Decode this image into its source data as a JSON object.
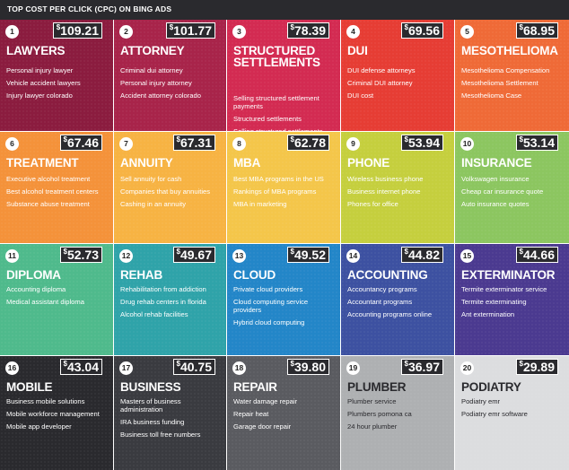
{
  "header": {
    "title": "TOP COST PER CLICK (CPC) ON BING ADS"
  },
  "tiles": [
    {
      "rank": "1",
      "price": "109.21",
      "name": "LAWYERS",
      "items": [
        "Personal injury lawyer",
        "Vehicle accident lawyers",
        "Injury lawyer colorado"
      ],
      "color": "#8b1c3f"
    },
    {
      "rank": "2",
      "price": "101.77",
      "name": "ATTORNEY",
      "items": [
        "Criminal dui attorney",
        "Personal injury attorney",
        "Accident attorney colorado"
      ],
      "color": "#a8244a"
    },
    {
      "rank": "3",
      "price": "78.39",
      "name": "STRUCTURED SETTLEMENTS",
      "items": [
        "Selling structured settlement payments",
        "Structured settlements",
        "Selling structured settlements"
      ],
      "color": "#d32b52"
    },
    {
      "rank": "4",
      "price": "69.56",
      "name": "DUI",
      "items": [
        "DUI defense attorneys",
        "Criminal DUI attorney",
        "DUI cost"
      ],
      "color": "#e63d34"
    },
    {
      "rank": "5",
      "price": "68.95",
      "name": "MESOTHELIOMA",
      "items": [
        "Mesothelioma Compensation",
        "Mesothelioma Settlement",
        "Mesothelioma Case"
      ],
      "color": "#ef6a37"
    },
    {
      "rank": "6",
      "price": "67.46",
      "name": "TREATMENT",
      "items": [
        "Executive alcohol treatment",
        "Best alcohol treatment centers",
        "Substance abuse treatment"
      ],
      "color": "#f4923a"
    },
    {
      "rank": "7",
      "price": "67.31",
      "name": "ANNUITY",
      "items": [
        "Sell annuity for cash",
        "Companies that buy annuities",
        "Cashing in an annuity"
      ],
      "color": "#f7b343"
    },
    {
      "rank": "8",
      "price": "62.78",
      "name": "MBA",
      "items": [
        "Best MBA programs in the US",
        "Rankings of MBA programs",
        "MBA in marketing"
      ],
      "color": "#f4c64a"
    },
    {
      "rank": "9",
      "price": "53.94",
      "name": "PHONE",
      "items": [
        "Wireless business phone",
        "Business internet phone",
        "Phones for office"
      ],
      "color": "#c5cf3e"
    },
    {
      "rank": "10",
      "price": "53.14",
      "name": "INSURANCE",
      "items": [
        "Volkswagen insurance",
        "Cheap car insurance quote",
        "Auto insurance quotes"
      ],
      "color": "#8cc660"
    },
    {
      "rank": "11",
      "price": "52.73",
      "name": "DIPLOMA",
      "items": [
        "Accounting diploma",
        "Medical assistant diploma"
      ],
      "color": "#4fba8c"
    },
    {
      "rank": "12",
      "price": "49.67",
      "name": "REHAB",
      "items": [
        "Rehabilitation from addiction",
        "Drug rehab centers in florida",
        "Alcohol rehab facilities"
      ],
      "color": "#2fa3a9"
    },
    {
      "rank": "13",
      "price": "49.52",
      "name": "CLOUD",
      "items": [
        "Private cloud providers",
        "Cloud computing service providers",
        "Hybrid cloud computing"
      ],
      "color": "#2386c8"
    },
    {
      "rank": "14",
      "price": "44.82",
      "name": "ACCOUNTING",
      "items": [
        "Accountancy programs",
        "Accountant programs",
        "Accounting programs online"
      ],
      "color": "#3d51a1"
    },
    {
      "rank": "15",
      "price": "44.66",
      "name": "EXTERMINATOR",
      "items": [
        "Termite exterminator service",
        "Termite exterminating",
        "Ant extermination"
      ],
      "color": "#4b3a90"
    },
    {
      "rank": "16",
      "price": "43.04",
      "name": "MOBILE",
      "items": [
        "Business mobile solutions",
        "Mobile workforce management",
        "Mobile app developer"
      ],
      "color": "#2a2a2e"
    },
    {
      "rank": "17",
      "price": "40.75",
      "name": "BUSINESS",
      "items": [
        "Masters of business administration",
        "IRA business funding",
        "Business toll free numbers"
      ],
      "color": "#3a3b40"
    },
    {
      "rank": "18",
      "price": "39.80",
      "name": "REPAIR",
      "items": [
        "Water damage repair",
        "Repair heat",
        "Garage door repair"
      ],
      "color": "#5a5b60"
    },
    {
      "rank": "19",
      "price": "36.97",
      "name": "PLUMBER",
      "items": [
        "Plumber service",
        "Plumbers pomona ca",
        "24 hour plumber"
      ],
      "color": "#aeb0b2"
    },
    {
      "rank": "20",
      "price": "29.89",
      "name": "PODIATRY",
      "items": [
        "Podiatry emr",
        "Podiatry emr software"
      ],
      "color": "#dcdddf"
    }
  ]
}
